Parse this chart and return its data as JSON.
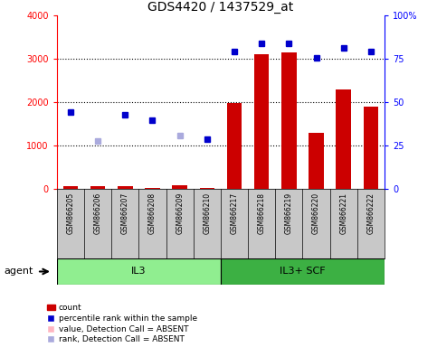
{
  "title": "GDS4420 / 1437529_at",
  "samples": [
    "GSM866205",
    "GSM866206",
    "GSM866207",
    "GSM866208",
    "GSM866209",
    "GSM866210",
    "GSM866217",
    "GSM866218",
    "GSM866219",
    "GSM866220",
    "GSM866221",
    "GSM866222"
  ],
  "groups": [
    {
      "label": "IL3",
      "start": 0,
      "end": 6,
      "color": "#90EE90"
    },
    {
      "label": "IL3+ SCF",
      "start": 6,
      "end": 12,
      "color": "#3CB043"
    }
  ],
  "counts": [
    60,
    60,
    70,
    30,
    90,
    20,
    1980,
    3100,
    3150,
    1300,
    2300,
    1900
  ],
  "percentile_ranks": [
    1780,
    null,
    1720,
    1580,
    null,
    1160,
    3180,
    3370,
    3350,
    3020,
    3250,
    3170
  ],
  "ranks_absent": [
    null,
    1100,
    null,
    null,
    1230,
    null,
    null,
    null,
    null,
    null,
    null,
    null
  ],
  "ylim_left": [
    0,
    4000
  ],
  "ylim_right": [
    0,
    100
  ],
  "yticks_left": [
    0,
    1000,
    2000,
    3000,
    4000
  ],
  "yticks_right": [
    0,
    25,
    50,
    75,
    100
  ],
  "bar_color": "#CC0000",
  "dot_color_present": "#0000CC",
  "dot_color_absent_value": "#FFB6C1",
  "dot_color_absent_rank": "#AAAADD",
  "background_plot": "#FFFFFF",
  "background_sample": "#C8C8C8"
}
